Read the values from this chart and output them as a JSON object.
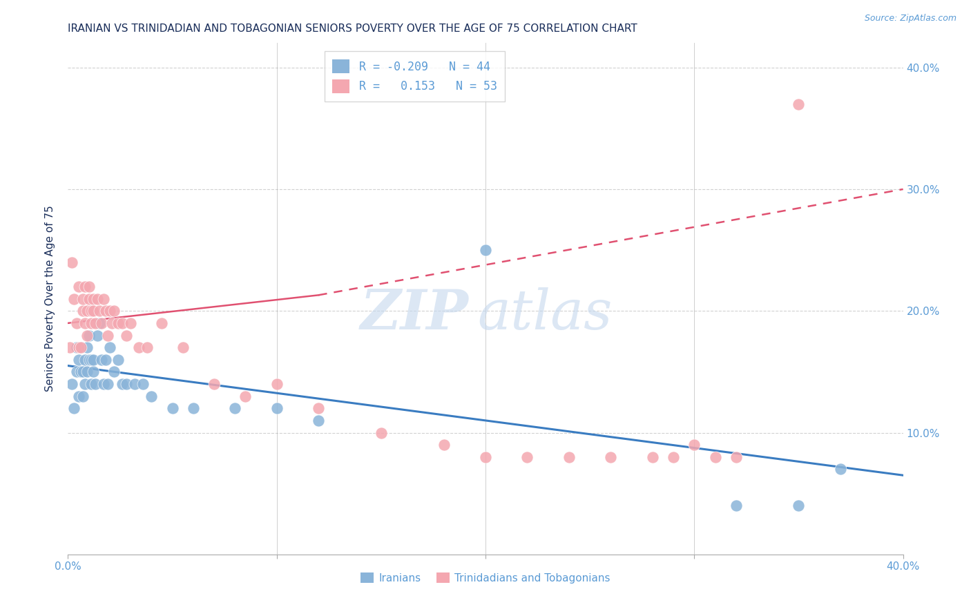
{
  "title": "IRANIAN VS TRINIDADIAN AND TOBAGONIAN SENIORS POVERTY OVER THE AGE OF 75 CORRELATION CHART",
  "source": "Source: ZipAtlas.com",
  "ylabel": "Seniors Poverty Over the Age of 75",
  "xlabel_ticks": [
    "0.0%",
    "10.0%",
    "20.0%",
    "30.0%",
    "40.0%"
  ],
  "ylabel_ticks": [
    "10.0%",
    "20.0%",
    "30.0%",
    "40.0%"
  ],
  "xlim": [
    0.0,
    0.4
  ],
  "ylim": [
    0.0,
    0.42
  ],
  "legend_entries": [
    {
      "label": "R = -0.209   N = 44",
      "color": "#8ab4d9"
    },
    {
      "label": "R =   0.153   N = 53",
      "color": "#f4a7b0"
    }
  ],
  "legend_label_iranians": "Iranians",
  "legend_label_tt": "Trinidadians and Tobagonians",
  "blue_color": "#8ab4d9",
  "pink_color": "#f4a7b0",
  "title_color": "#1a2e5a",
  "axis_color": "#5b9bd5",
  "watermark_zip": "ZIP",
  "watermark_atlas": "atlas",
  "background_color": "#ffffff",
  "grid_color": "#cccccc",
  "iranians_x": [
    0.002,
    0.003,
    0.004,
    0.004,
    0.005,
    0.005,
    0.006,
    0.006,
    0.007,
    0.007,
    0.008,
    0.008,
    0.009,
    0.009,
    0.01,
    0.01,
    0.011,
    0.011,
    0.012,
    0.012,
    0.013,
    0.014,
    0.015,
    0.016,
    0.017,
    0.018,
    0.019,
    0.02,
    0.022,
    0.024,
    0.026,
    0.028,
    0.032,
    0.036,
    0.04,
    0.05,
    0.06,
    0.08,
    0.1,
    0.12,
    0.2,
    0.32,
    0.35,
    0.37
  ],
  "iranians_y": [
    0.14,
    0.12,
    0.15,
    0.17,
    0.13,
    0.16,
    0.15,
    0.17,
    0.13,
    0.15,
    0.16,
    0.14,
    0.17,
    0.15,
    0.16,
    0.18,
    0.16,
    0.14,
    0.15,
    0.16,
    0.14,
    0.18,
    0.19,
    0.16,
    0.14,
    0.16,
    0.14,
    0.17,
    0.15,
    0.16,
    0.14,
    0.14,
    0.14,
    0.14,
    0.13,
    0.12,
    0.12,
    0.12,
    0.12,
    0.11,
    0.25,
    0.04,
    0.04,
    0.07
  ],
  "tt_x": [
    0.001,
    0.002,
    0.003,
    0.004,
    0.005,
    0.005,
    0.006,
    0.007,
    0.007,
    0.008,
    0.008,
    0.009,
    0.009,
    0.01,
    0.01,
    0.011,
    0.011,
    0.012,
    0.012,
    0.013,
    0.014,
    0.015,
    0.016,
    0.017,
    0.018,
    0.019,
    0.02,
    0.021,
    0.022,
    0.024,
    0.026,
    0.028,
    0.03,
    0.034,
    0.038,
    0.045,
    0.055,
    0.07,
    0.085,
    0.1,
    0.12,
    0.15,
    0.18,
    0.2,
    0.22,
    0.24,
    0.26,
    0.28,
    0.29,
    0.3,
    0.31,
    0.32,
    0.35
  ],
  "tt_y": [
    0.17,
    0.24,
    0.21,
    0.19,
    0.17,
    0.22,
    0.17,
    0.2,
    0.21,
    0.22,
    0.19,
    0.2,
    0.18,
    0.21,
    0.22,
    0.2,
    0.19,
    0.21,
    0.2,
    0.19,
    0.21,
    0.2,
    0.19,
    0.21,
    0.2,
    0.18,
    0.2,
    0.19,
    0.2,
    0.19,
    0.19,
    0.18,
    0.19,
    0.17,
    0.17,
    0.19,
    0.17,
    0.14,
    0.13,
    0.14,
    0.12,
    0.1,
    0.09,
    0.08,
    0.08,
    0.08,
    0.08,
    0.08,
    0.08,
    0.09,
    0.08,
    0.08,
    0.37
  ],
  "blue_trend_x": [
    0.0,
    0.4
  ],
  "blue_trend_y": [
    0.155,
    0.065
  ],
  "pink_trend_x": [
    0.0,
    0.4
  ],
  "pink_trend_y": [
    0.19,
    0.3
  ]
}
